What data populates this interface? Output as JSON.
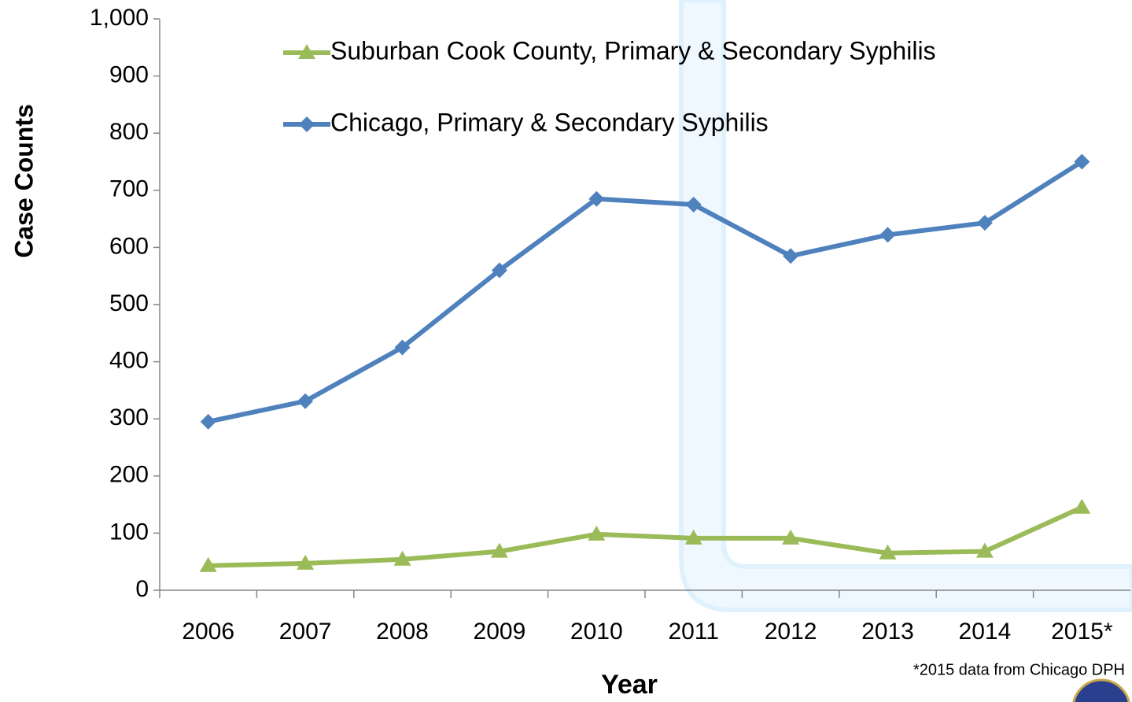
{
  "chart_data": {
    "type": "line",
    "x_label": "Year",
    "y_label": "Case Counts",
    "categories": [
      "2006",
      "2007",
      "2008",
      "2009",
      "2010",
      "2011",
      "2012",
      "2013",
      "2014",
      "2015*"
    ],
    "series": [
      {
        "name": "Suburban Cook County, Primary & Secondary Syphilis",
        "color": "#9bbb59",
        "marker": "triangle",
        "values": [
          43,
          47,
          54,
          68,
          98,
          91,
          91,
          65,
          68,
          145
        ]
      },
      {
        "name": "Chicago, Primary & Secondary Syphilis",
        "color": "#4f81bd",
        "marker": "diamond",
        "values": [
          295,
          331,
          425,
          560,
          685,
          675,
          585,
          622,
          643,
          750
        ]
      }
    ],
    "ylim": [
      0,
      1000
    ],
    "yticks": [
      0,
      100,
      200,
      300,
      400,
      500,
      600,
      700,
      800,
      900,
      {
        "value": 1000,
        "label": "1,000"
      }
    ],
    "footnote": "*2015 data from Chicago DPH"
  }
}
